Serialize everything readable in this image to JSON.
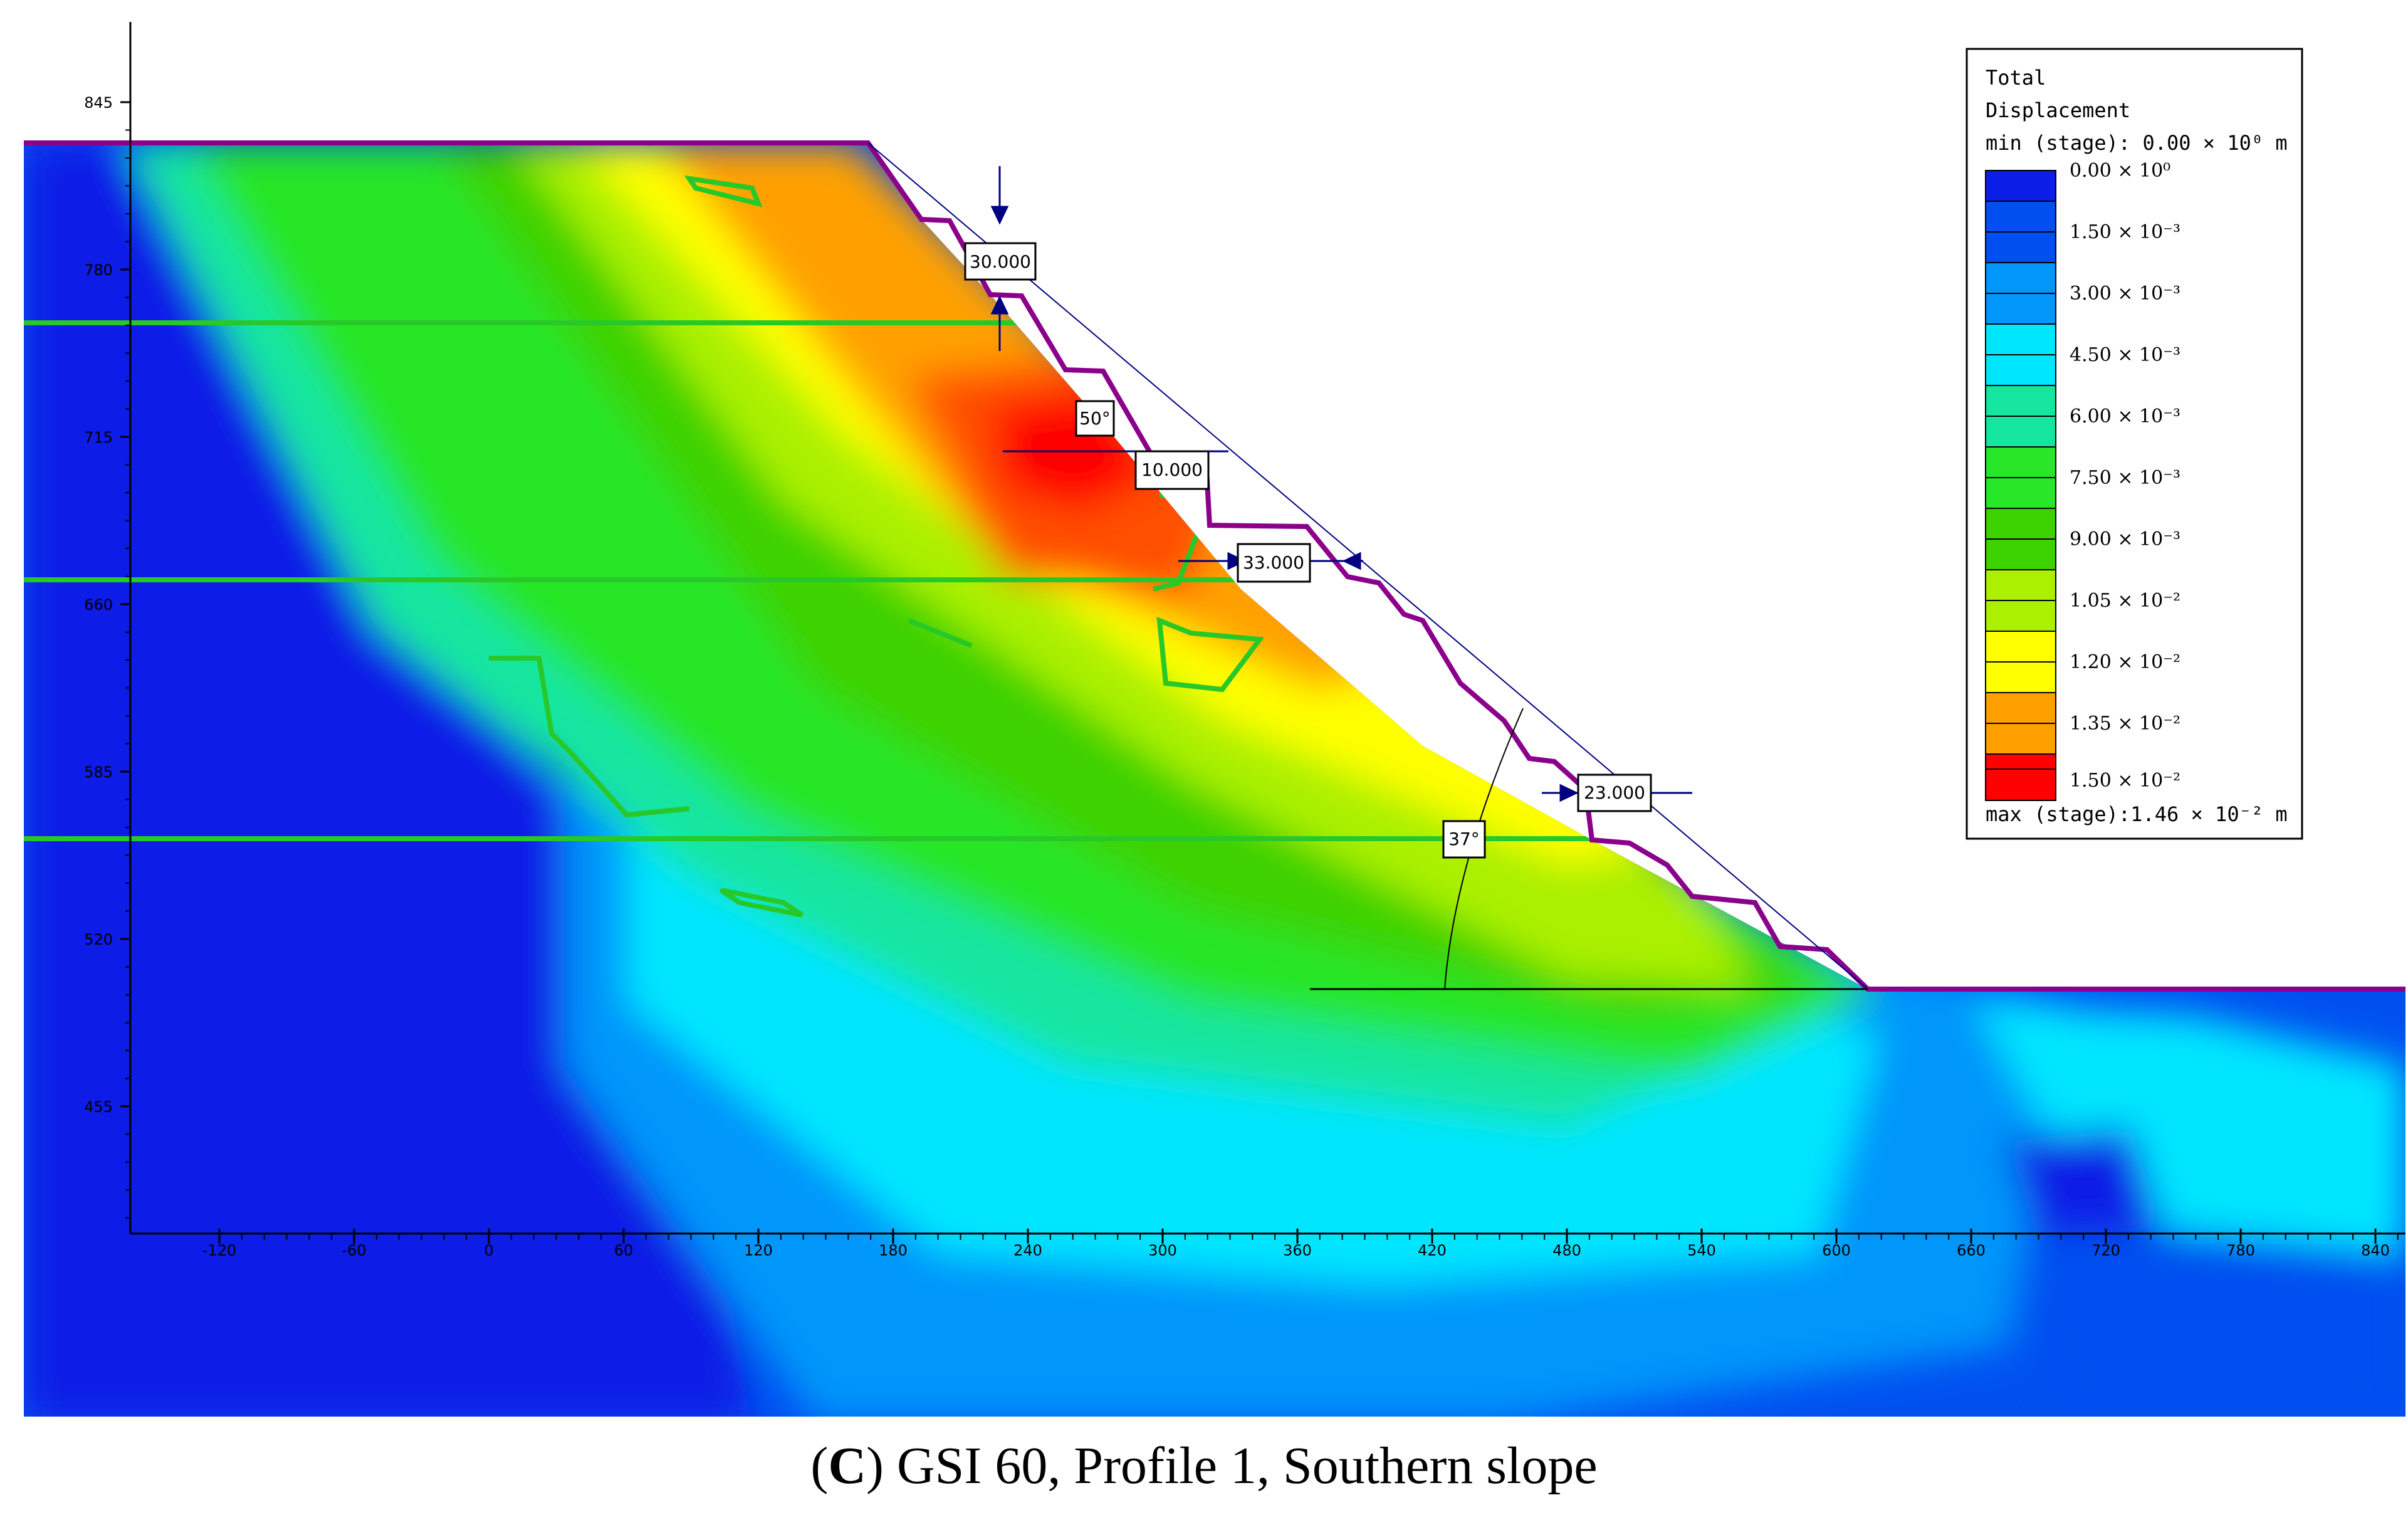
{
  "caption": {
    "open_paren": "(",
    "letter": "C",
    "close_paren": ")",
    "text": " GSI 60, Profile 1, Southern slope"
  },
  "axes": {
    "x_ticks": [
      "-120",
      "-60",
      "0",
      "60",
      "120",
      "180",
      "240",
      "300",
      "360",
      "420",
      "480",
      "540",
      "600",
      "660",
      "720",
      "780",
      "840"
    ],
    "y_ticks": [
      "845",
      "780",
      "715",
      "660",
      "585",
      "520",
      "455"
    ]
  },
  "dimensions": {
    "bench_height": "30.000",
    "bench_width_top": "10.000",
    "bench_width_mid": "33.000",
    "bench_width_low": "23.000",
    "bench_face_angle": "50°",
    "overall_slope_angle": "37°"
  },
  "legend": {
    "title_line1": "Total",
    "title_line2": "Displacement",
    "min_label": "min (stage): 0.00 × 10⁰ m",
    "max_label": "max (stage):1.46 × 10⁻² m",
    "entries": [
      {
        "label": "0.00 × 10⁰",
        "color": "#0a1ee6"
      },
      {
        "label": "1.50 × 10⁻³",
        "color": "#0050f0"
      },
      {
        "label": "3.00 × 10⁻³",
        "color": "#0096fa"
      },
      {
        "label": "4.50 × 10⁻³",
        "color": "#00e6ff"
      },
      {
        "label": "6.00 × 10⁻³",
        "color": "#14e6a0"
      },
      {
        "label": "7.50 × 10⁻³",
        "color": "#28e628"
      },
      {
        "label": "9.00 × 10⁻³",
        "color": "#3cd200"
      },
      {
        "label": "1.05 × 10⁻²",
        "color": "#aaf000"
      },
      {
        "label": "1.20 × 10⁻²",
        "color": "#ffff00"
      },
      {
        "label": "1.35 × 10⁻²",
        "color": "#ffa000"
      },
      {
        "label": "1.50 × 10⁻²",
        "color": "#ff0000"
      }
    ]
  },
  "colors": {
    "ground_surface": "#8b008b",
    "layer_boundary": "#28c828",
    "dimension_arrow": "#000080"
  }
}
